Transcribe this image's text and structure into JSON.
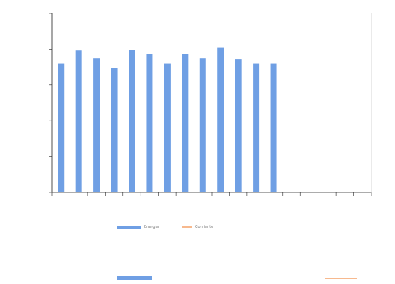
{
  "colors": {
    "energia": "#6f9fe4",
    "corriente": "#f7b98e",
    "axis": "#222222",
    "grid": "#dddddd"
  },
  "chart_data": {
    "type": "bar",
    "categories": [
      "",
      "",
      "",
      "",
      "",
      "",
      "",
      "",
      "",
      "",
      "",
      "",
      "",
      "",
      "",
      "",
      "",
      ""
    ],
    "series": [
      {
        "name": "Energía",
        "values": [
          3600,
          3960,
          3740,
          3480,
          3970,
          3860,
          3600,
          3860,
          3740,
          4040,
          3720,
          3600,
          3600,
          null,
          null,
          null,
          null,
          null
        ]
      },
      {
        "name": "Corriente",
        "values": [
          null,
          null,
          null,
          null,
          null,
          null,
          null,
          null,
          null,
          null,
          null,
          null,
          null,
          null,
          null,
          null,
          null,
          null
        ]
      }
    ],
    "ylim": [
      0,
      5000
    ],
    "yticks": [
      0,
      1000,
      2000,
      3000,
      4000,
      5000
    ],
    "grid": false,
    "legend_position": "bottom"
  },
  "footer": {
    "left_label": "",
    "center_title": "",
    "right_label": ""
  }
}
